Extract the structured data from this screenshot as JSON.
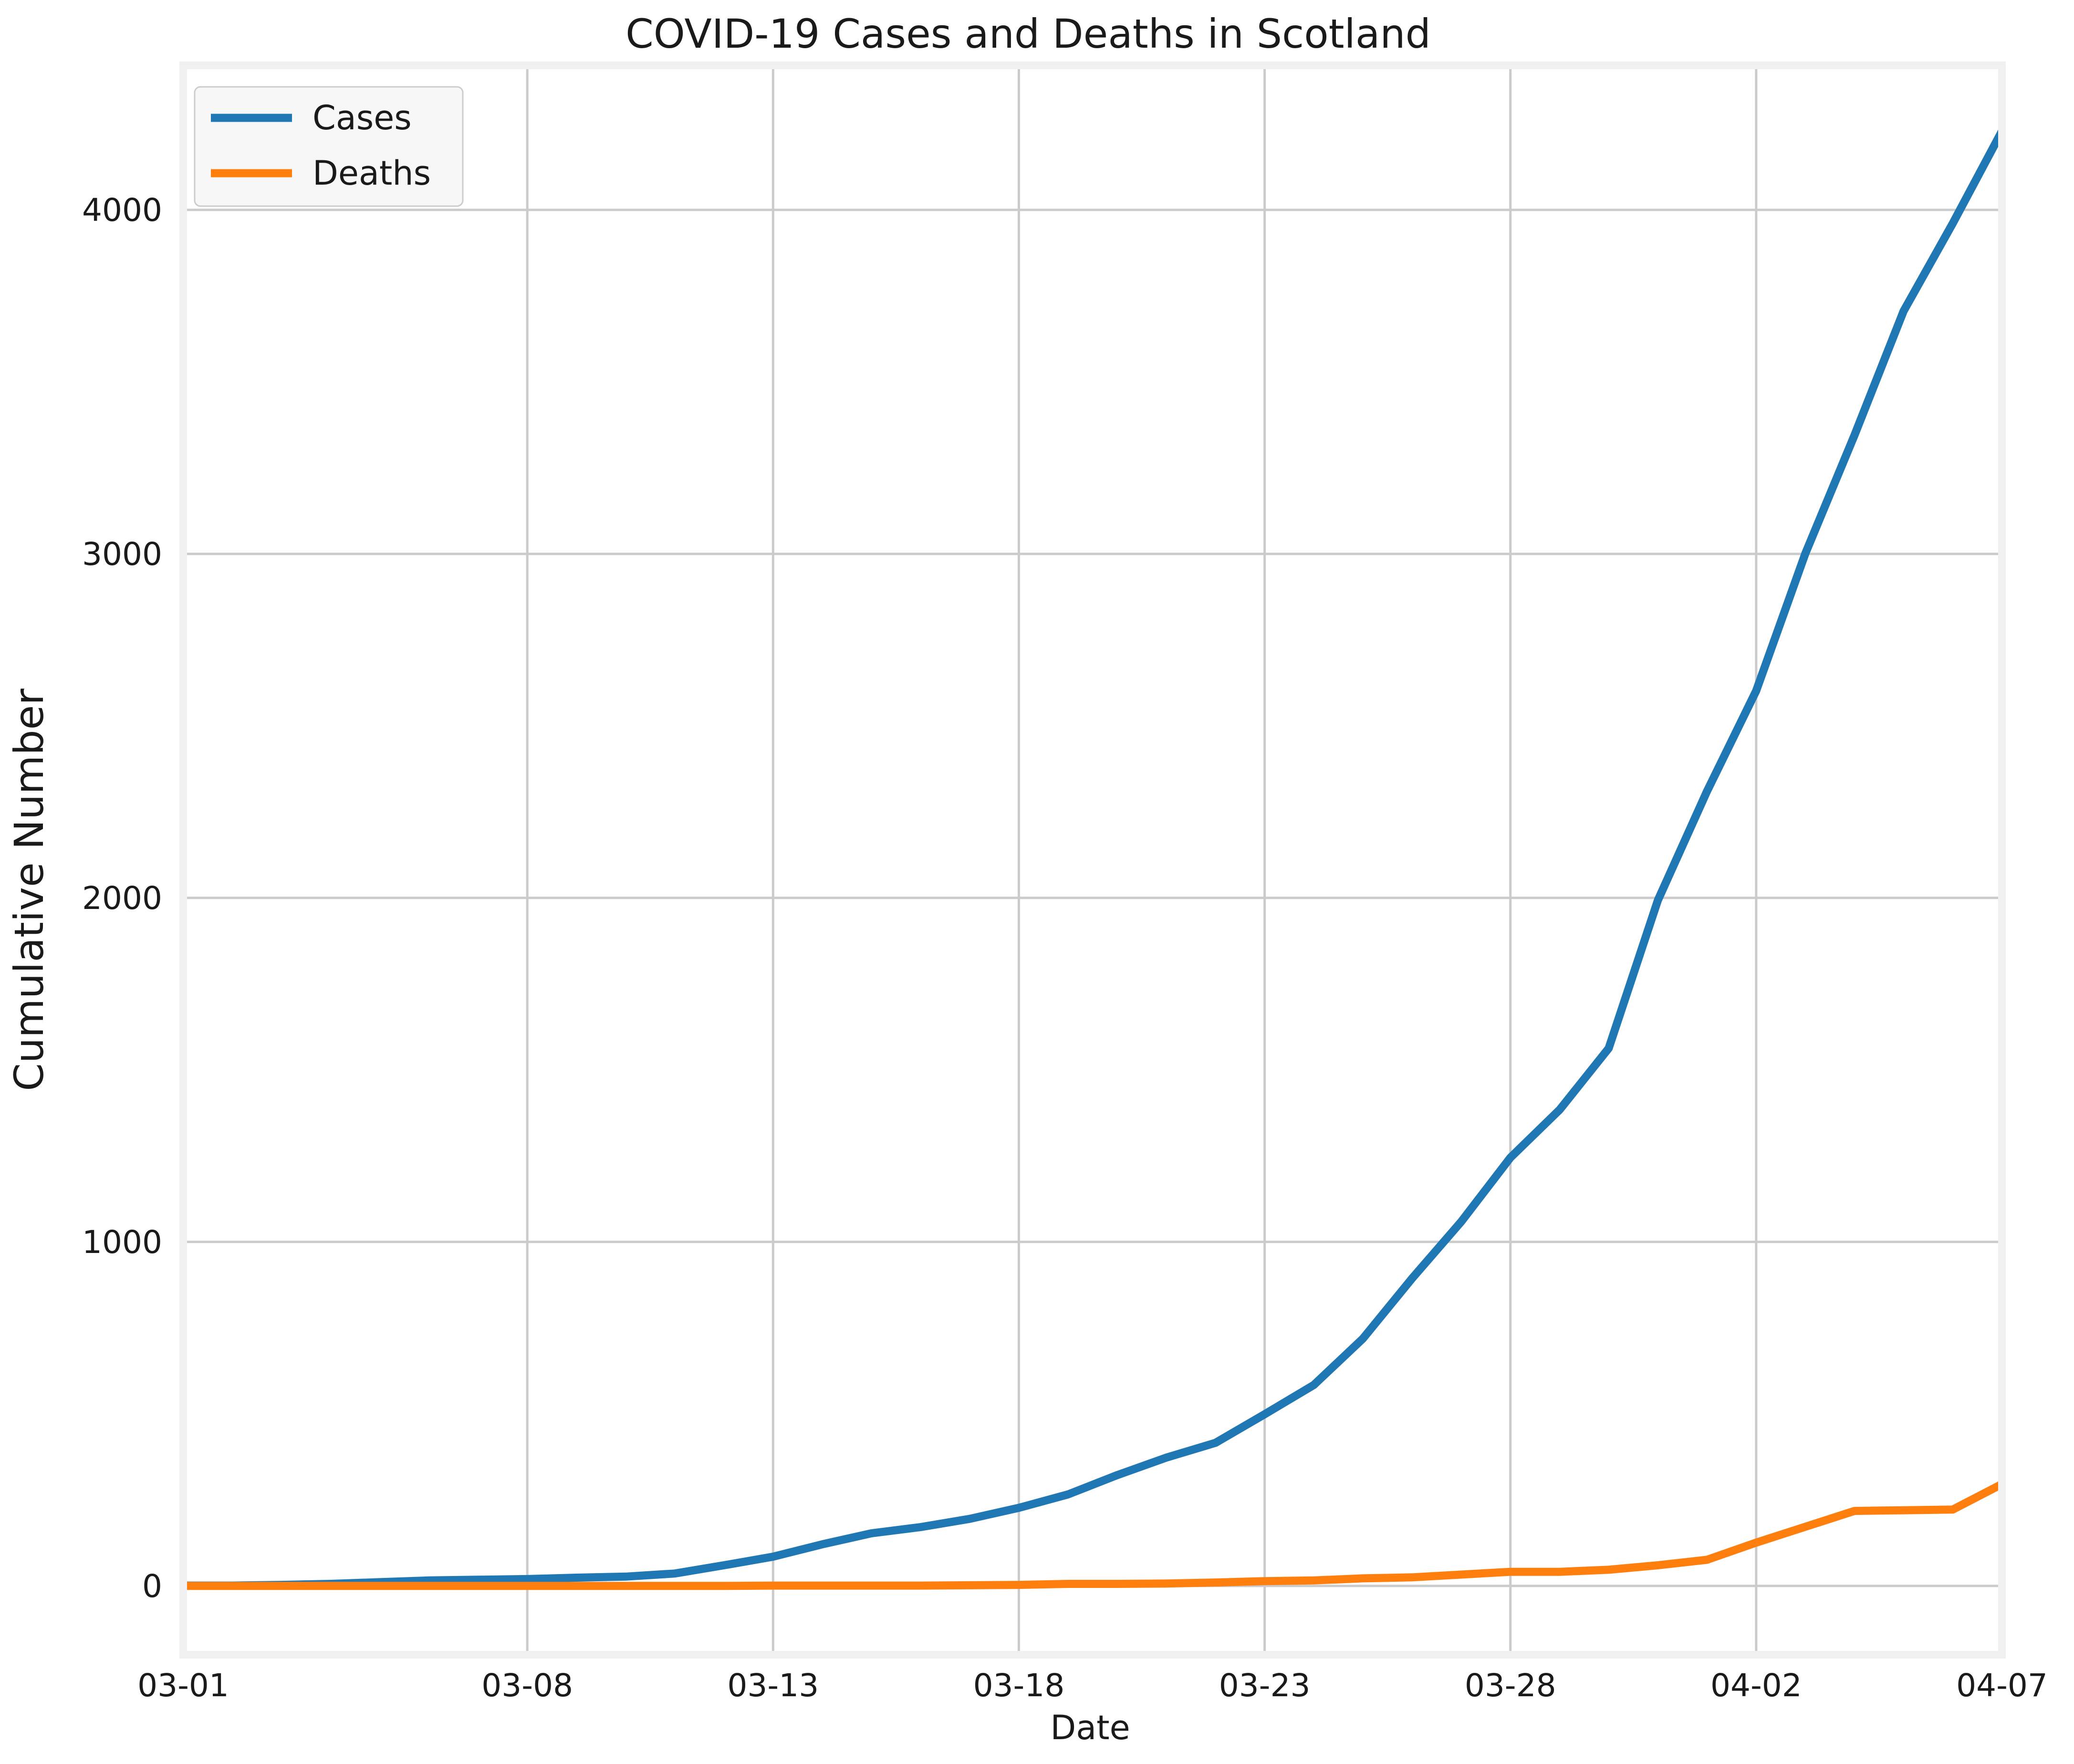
{
  "chart_data": {
    "type": "line",
    "title": "COVID-19 Cases and Deaths in Scotland",
    "xlabel": "Date",
    "ylabel": "Cumulative Number",
    "x": [
      "03-01",
      "03-02",
      "03-03",
      "03-04",
      "03-05",
      "03-06",
      "03-07",
      "03-08",
      "03-09",
      "03-10",
      "03-11",
      "03-12",
      "03-13",
      "03-14",
      "03-15",
      "03-16",
      "03-17",
      "03-18",
      "03-19",
      "03-20",
      "03-21",
      "03-22",
      "03-23",
      "03-24",
      "03-25",
      "03-26",
      "03-27",
      "03-28",
      "03-29",
      "03-30",
      "03-31",
      "04-01",
      "04-02",
      "04-03",
      "04-04",
      "04-05",
      "04-06",
      "04-07"
    ],
    "x_ticks": [
      "03-01",
      "03-08",
      "03-13",
      "03-18",
      "03-23",
      "03-28",
      "04-02",
      "04-07"
    ],
    "y_ticks": [
      0,
      1000,
      2000,
      3000,
      4000
    ],
    "ylim": [
      -200,
      4420
    ],
    "grid": true,
    "legend_position": "top-left",
    "series": [
      {
        "name": "Cases",
        "color": "#1f77b4",
        "values": [
          1,
          1,
          3,
          6,
          11,
          16,
          18,
          20,
          24,
          27,
          36,
          60,
          85,
          121,
          153,
          171,
          195,
          227,
          266,
          322,
          373,
          416,
          499,
          584,
          719,
          894,
          1059,
          1245,
          1384,
          1563,
          1993,
          2310,
          2602,
          3001,
          3345,
          3706,
          3961,
          4229
        ]
      },
      {
        "name": "Deaths",
        "color": "#ff7f0e",
        "values": [
          0,
          0,
          0,
          0,
          0,
          0,
          0,
          0,
          0,
          0,
          0,
          0,
          1,
          1,
          1,
          1,
          2,
          3,
          6,
          6,
          7,
          10,
          14,
          16,
          22,
          25,
          33,
          41,
          41,
          47,
          60,
          76,
          126,
          172,
          218,
          220,
          222,
          296
        ]
      }
    ]
  }
}
